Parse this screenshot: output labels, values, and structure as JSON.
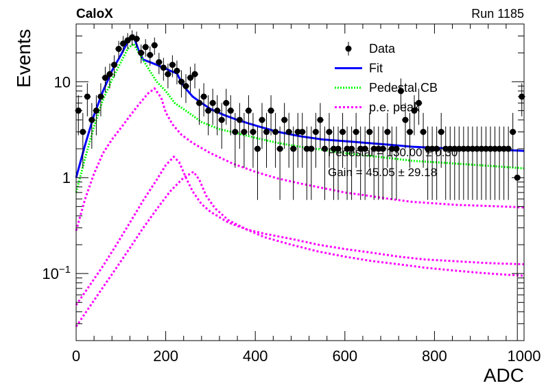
{
  "header": {
    "experiment": "CaloX",
    "run": "Run 1185"
  },
  "legend": {
    "placement": "top-right",
    "entries": [
      {
        "label": "Data",
        "style": "marker",
        "color": "#000000"
      },
      {
        "label": "Fit",
        "style": "line",
        "color": "#0000ff"
      },
      {
        "label": "Pedestal CB",
        "style": "dotted",
        "color": "#00ff00"
      },
      {
        "label": "p.e. peak",
        "style": "dashed",
        "color": "#ff00ff"
      }
    ]
  },
  "fit_results": {
    "pedestal": "Pedestal = 130.00 ± 0.30",
    "gain": "Gain = 45.05 ± 29.18"
  },
  "chart_data": {
    "type": "scatter",
    "title": "",
    "xlabel": "ADC",
    "ylabel": "Events",
    "xlim": [
      0,
      1000
    ],
    "ylim": [
      0.02,
      40
    ],
    "yscale": "log",
    "grid": false,
    "xticks": [
      {
        "value": 0,
        "label": "0"
      },
      {
        "value": 200,
        "label": "200"
      },
      {
        "value": 400,
        "label": "400"
      },
      {
        "value": 600,
        "label": "600"
      },
      {
        "value": 800,
        "label": "800"
      },
      {
        "value": 1000,
        "label": "1000"
      }
    ],
    "yticks": [
      {
        "value": 0.1,
        "label": "10",
        "sup": "−1"
      },
      {
        "value": 1,
        "label": "1",
        "sup": ""
      },
      {
        "value": 10,
        "label": "10",
        "sup": ""
      }
    ],
    "series": [
      {
        "name": "Data",
        "kind": "points",
        "color": "#000000",
        "points": [
          [
            5,
            5
          ],
          [
            15,
            3
          ],
          [
            25,
            7
          ],
          [
            35,
            4
          ],
          [
            45,
            5
          ],
          [
            55,
            7
          ],
          [
            65,
            11
          ],
          [
            75,
            12
          ],
          [
            85,
            15
          ],
          [
            95,
            22
          ],
          [
            105,
            25
          ],
          [
            115,
            27
          ],
          [
            125,
            29
          ],
          [
            135,
            28
          ],
          [
            145,
            20
          ],
          [
            155,
            23
          ],
          [
            165,
            19
          ],
          [
            175,
            24
          ],
          [
            185,
            16
          ],
          [
            195,
            14
          ],
          [
            205,
            12
          ],
          [
            215,
            15
          ],
          [
            225,
            13
          ],
          [
            235,
            10
          ],
          [
            245,
            9
          ],
          [
            255,
            11
          ],
          [
            265,
            12
          ],
          [
            275,
            6
          ],
          [
            285,
            7
          ],
          [
            295,
            5
          ],
          [
            305,
            6
          ],
          [
            315,
            5
          ],
          [
            325,
            4
          ],
          [
            335,
            6
          ],
          [
            345,
            5
          ],
          [
            355,
            3
          ],
          [
            365,
            4
          ],
          [
            375,
            3
          ],
          [
            385,
            5
          ],
          [
            395,
            3
          ],
          [
            405,
            2
          ],
          [
            415,
            4
          ],
          [
            425,
            3
          ],
          [
            435,
            5
          ],
          [
            445,
            3
          ],
          [
            455,
            2
          ],
          [
            465,
            4
          ],
          [
            475,
            3
          ],
          [
            485,
            2
          ],
          [
            495,
            3
          ],
          [
            505,
            3
          ],
          [
            515,
            2
          ],
          [
            525,
            2
          ],
          [
            535,
            3
          ],
          [
            545,
            4
          ],
          [
            555,
            2
          ],
          [
            565,
            3
          ],
          [
            575,
            2
          ],
          [
            585,
            2
          ],
          [
            595,
            3
          ],
          [
            605,
            2
          ],
          [
            615,
            2
          ],
          [
            625,
            3
          ],
          [
            635,
            2
          ],
          [
            645,
            2
          ],
          [
            655,
            3
          ],
          [
            665,
            2
          ],
          [
            675,
            2
          ],
          [
            685,
            2
          ],
          [
            695,
            3
          ],
          [
            705,
            2
          ],
          [
            715,
            2
          ],
          [
            725,
            8
          ],
          [
            735,
            4
          ],
          [
            745,
            3
          ],
          [
            755,
            5
          ],
          [
            765,
            6
          ],
          [
            775,
            3
          ],
          [
            785,
            2
          ],
          [
            795,
            2
          ],
          [
            805,
            2
          ],
          [
            815,
            3
          ],
          [
            825,
            2
          ],
          [
            835,
            2
          ],
          [
            845,
            2
          ],
          [
            855,
            2
          ],
          [
            865,
            2
          ],
          [
            875,
            2
          ],
          [
            885,
            2
          ],
          [
            895,
            2
          ],
          [
            905,
            2
          ],
          [
            915,
            2
          ],
          [
            925,
            2
          ],
          [
            935,
            2
          ],
          [
            945,
            2
          ],
          [
            955,
            2
          ],
          [
            965,
            2
          ],
          [
            975,
            3
          ],
          [
            985,
            1
          ],
          [
            995,
            7
          ]
        ]
      },
      {
        "name": "Fit",
        "kind": "line",
        "color": "#0000ff",
        "points": [
          [
            0,
            1.0
          ],
          [
            20,
            2.2
          ],
          [
            40,
            4.5
          ],
          [
            60,
            8
          ],
          [
            80,
            13
          ],
          [
            100,
            19
          ],
          [
            115,
            26
          ],
          [
            128,
            30
          ],
          [
            140,
            21
          ],
          [
            150,
            17
          ],
          [
            165,
            16
          ],
          [
            180,
            15
          ],
          [
            195,
            14
          ],
          [
            210,
            13
          ],
          [
            225,
            12.2
          ],
          [
            240,
            9
          ],
          [
            260,
            7
          ],
          [
            280,
            6
          ],
          [
            300,
            5.2
          ],
          [
            330,
            4.5
          ],
          [
            360,
            4
          ],
          [
            400,
            3.5
          ],
          [
            450,
            3.0
          ],
          [
            500,
            2.7
          ],
          [
            550,
            2.5
          ],
          [
            600,
            2.4
          ],
          [
            650,
            2.3
          ],
          [
            700,
            2.2
          ],
          [
            750,
            2.1
          ],
          [
            800,
            2.05
          ],
          [
            850,
            2.0
          ],
          [
            900,
            2.0
          ],
          [
            950,
            1.95
          ],
          [
            1000,
            1.9
          ]
        ]
      },
      {
        "name": "Pedestal CB",
        "kind": "line",
        "color": "#00ff00",
        "points": [
          [
            0,
            0.7
          ],
          [
            20,
            1.6
          ],
          [
            40,
            3.4
          ],
          [
            60,
            6.5
          ],
          [
            80,
            10.5
          ],
          [
            100,
            16
          ],
          [
            115,
            22
          ],
          [
            128,
            25
          ],
          [
            140,
            20
          ],
          [
            160,
            14
          ],
          [
            180,
            10
          ],
          [
            200,
            8
          ],
          [
            220,
            6
          ],
          [
            250,
            4.8
          ],
          [
            280,
            3.8
          ],
          [
            320,
            3.2
          ],
          [
            360,
            2.9
          ],
          [
            400,
            2.6
          ],
          [
            450,
            2.3
          ],
          [
            500,
            2.1
          ],
          [
            550,
            1.95
          ],
          [
            600,
            1.8
          ],
          [
            650,
            1.7
          ],
          [
            700,
            1.6
          ],
          [
            750,
            1.5
          ],
          [
            800,
            1.45
          ],
          [
            850,
            1.4
          ],
          [
            900,
            1.35
          ],
          [
            950,
            1.3
          ],
          [
            1000,
            1.25
          ]
        ]
      },
      {
        "name": "p.e. peak 1",
        "kind": "line",
        "color": "#ff00ff",
        "points": [
          [
            0,
            0.28
          ],
          [
            20,
            0.6
          ],
          [
            40,
            1.1
          ],
          [
            60,
            1.8
          ],
          [
            80,
            2.5
          ],
          [
            100,
            3.3
          ],
          [
            120,
            4.4
          ],
          [
            140,
            5.8
          ],
          [
            160,
            7.5
          ],
          [
            175,
            8.5
          ],
          [
            190,
            6.8
          ],
          [
            200,
            4.8
          ],
          [
            215,
            3.6
          ],
          [
            235,
            2.8
          ],
          [
            260,
            2.3
          ],
          [
            300,
            1.8
          ],
          [
            350,
            1.4
          ],
          [
            400,
            1.15
          ],
          [
            450,
            0.98
          ],
          [
            500,
            0.87
          ],
          [
            550,
            0.78
          ],
          [
            600,
            0.7
          ],
          [
            650,
            0.65
          ],
          [
            700,
            0.6
          ],
          [
            750,
            0.56
          ],
          [
            800,
            0.54
          ],
          [
            850,
            0.52
          ],
          [
            900,
            0.51
          ],
          [
            950,
            0.5
          ],
          [
            1000,
            0.49
          ]
        ]
      },
      {
        "name": "p.e. peak 2",
        "kind": "line",
        "color": "#ff00ff",
        "points": [
          [
            0,
            0.047
          ],
          [
            30,
            0.075
          ],
          [
            60,
            0.12
          ],
          [
            90,
            0.2
          ],
          [
            120,
            0.34
          ],
          [
            150,
            0.58
          ],
          [
            180,
            0.95
          ],
          [
            200,
            1.35
          ],
          [
            218,
            1.65
          ],
          [
            230,
            1.45
          ],
          [
            245,
            1.0
          ],
          [
            260,
            0.72
          ],
          [
            280,
            0.53
          ],
          [
            300,
            0.44
          ],
          [
            340,
            0.34
          ],
          [
            380,
            0.29
          ],
          [
            420,
            0.26
          ],
          [
            480,
            0.23
          ],
          [
            540,
            0.2
          ],
          [
            600,
            0.18
          ],
          [
            660,
            0.165
          ],
          [
            720,
            0.15
          ],
          [
            780,
            0.14
          ],
          [
            840,
            0.135
          ],
          [
            900,
            0.13
          ],
          [
            950,
            0.127
          ],
          [
            1000,
            0.125
          ]
        ]
      },
      {
        "name": "p.e. peak 3",
        "kind": "line",
        "color": "#ff00ff",
        "points": [
          [
            0,
            0.028
          ],
          [
            30,
            0.045
          ],
          [
            60,
            0.072
          ],
          [
            90,
            0.115
          ],
          [
            120,
            0.185
          ],
          [
            150,
            0.3
          ],
          [
            180,
            0.47
          ],
          [
            210,
            0.72
          ],
          [
            240,
            1.0
          ],
          [
            262,
            1.15
          ],
          [
            275,
            0.95
          ],
          [
            290,
            0.65
          ],
          [
            310,
            0.48
          ],
          [
            340,
            0.36
          ],
          [
            380,
            0.29
          ],
          [
            420,
            0.24
          ],
          [
            480,
            0.2
          ],
          [
            540,
            0.17
          ],
          [
            600,
            0.15
          ],
          [
            660,
            0.135
          ],
          [
            720,
            0.125
          ],
          [
            780,
            0.115
          ],
          [
            840,
            0.108
          ],
          [
            900,
            0.102
          ],
          [
            950,
            0.098
          ],
          [
            1000,
            0.095
          ]
        ]
      }
    ]
  }
}
